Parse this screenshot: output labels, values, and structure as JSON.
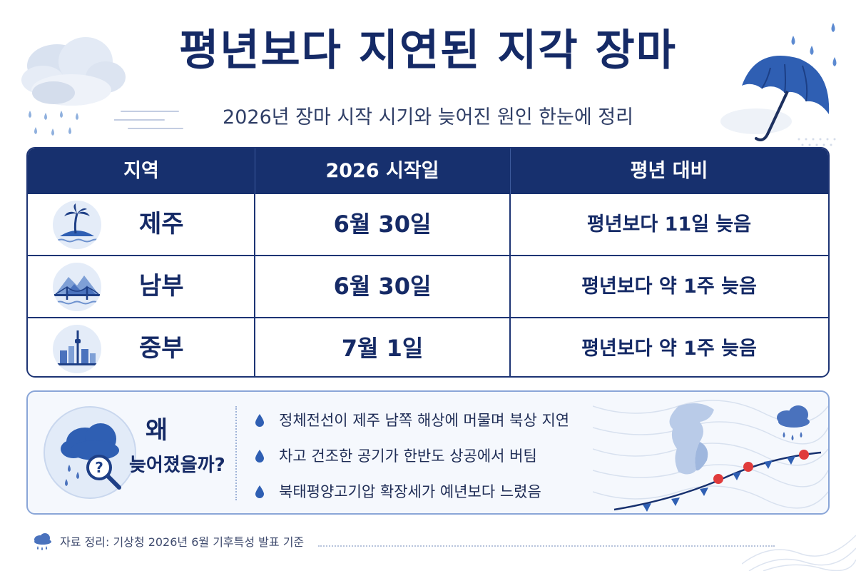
{
  "header": {
    "title": "평년보다 지연된 지각 장마",
    "subtitle": "2026년 장마 시작 시기와 늦어진 원인 한눈에 정리"
  },
  "table": {
    "columns": [
      "지역",
      "2026 시작일",
      "평년 대비"
    ],
    "rows": [
      {
        "region": "제주",
        "start": "6월 30일",
        "compare": "평년보다 11일 늦음",
        "icon": "palm-island-icon"
      },
      {
        "region": "남부",
        "start": "6월 30일",
        "compare": "평년보다 약 1주 늦음",
        "icon": "bridge-mountain-icon"
      },
      {
        "region": "중부",
        "start": "7월 1일",
        "compare": "평년보다 약 1주 늦음",
        "icon": "city-tower-icon"
      }
    ]
  },
  "why": {
    "title_line1": "왜",
    "title_line2": "늦어졌을까?",
    "reasons": [
      "정체전선이 제주 남쪽 해상에 머물며 북상 지연",
      "차고 건조한 공기가 한반도 상공에서 버팀",
      "북태평양고기압 확장세가 예년보다 느렸음"
    ]
  },
  "footer": {
    "source": "자료 정리: 기상청 2026년 6월 기후특성 발표 기준"
  },
  "colors": {
    "navy": "#17306e",
    "accent_blue": "#2f5fb3",
    "light_blue": "#e4ecf8",
    "front_red": "#e03b3b"
  }
}
